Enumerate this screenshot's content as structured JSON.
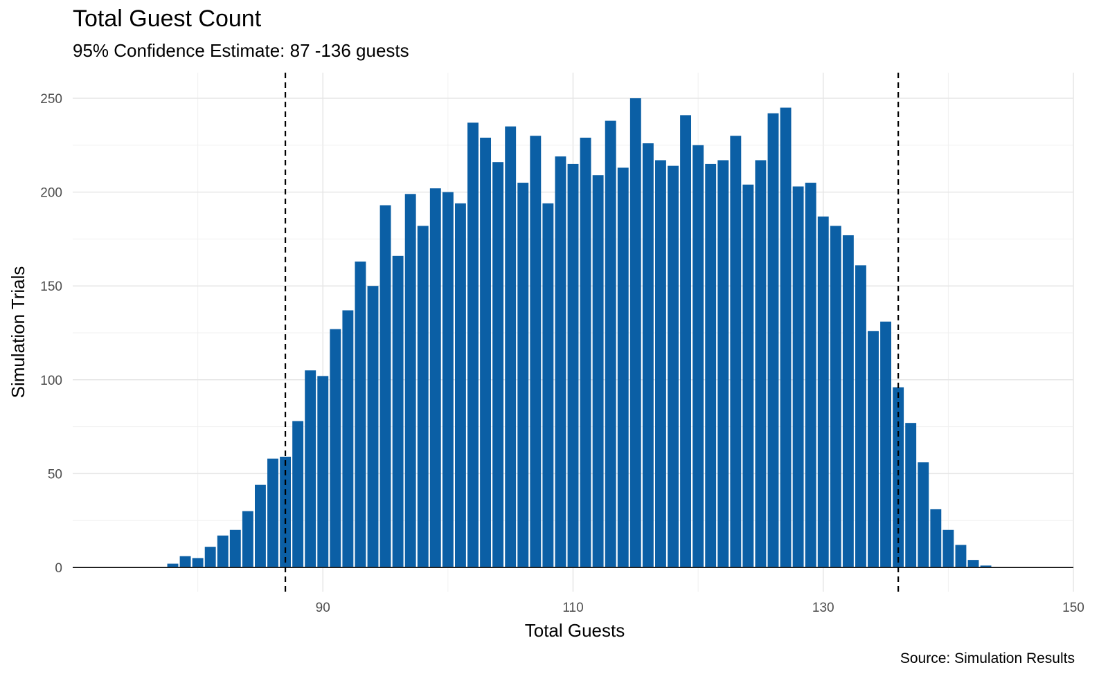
{
  "chart_data": {
    "type": "bar",
    "title": "Total Guest Count",
    "subtitle": "95% Confidence Estimate: 87 -136 guests",
    "xlabel": "Total Guests",
    "ylabel": "Simulation Trials",
    "caption": "Source: Simulation Results",
    "x": [
      78,
      79,
      80,
      81,
      82,
      83,
      84,
      85,
      86,
      87,
      88,
      89,
      90,
      91,
      92,
      93,
      94,
      95,
      96,
      97,
      98,
      99,
      100,
      101,
      102,
      103,
      104,
      105,
      106,
      107,
      108,
      109,
      110,
      111,
      112,
      113,
      114,
      115,
      116,
      117,
      118,
      119,
      120,
      121,
      122,
      123,
      124,
      125,
      126,
      127,
      128,
      129,
      130,
      131,
      132,
      133,
      134,
      135,
      136,
      137,
      138,
      139,
      140,
      141,
      142,
      143
    ],
    "values": [
      2,
      6,
      5,
      11,
      17,
      20,
      30,
      44,
      58,
      59,
      78,
      105,
      102,
      127,
      137,
      163,
      150,
      193,
      166,
      199,
      182,
      202,
      200,
      194,
      237,
      229,
      216,
      235,
      205,
      230,
      194,
      219,
      215,
      229,
      209,
      238,
      213,
      250,
      226,
      217,
      214,
      241,
      225,
      215,
      217,
      230,
      204,
      217,
      242,
      245,
      203,
      205,
      187,
      182,
      177,
      161,
      126,
      131,
      96,
      77,
      56,
      31,
      20,
      12,
      4,
      1
    ],
    "xlim": [
      70,
      150
    ],
    "ylim": [
      0,
      250
    ],
    "x_ticks": [
      90,
      110,
      130,
      150
    ],
    "y_ticks": [
      0,
      50,
      100,
      150,
      200,
      250
    ],
    "reference_lines": [
      87,
      136
    ],
    "grid": true,
    "bar_color": "#0b5fa5",
    "reference_line_color": "#000000"
  }
}
